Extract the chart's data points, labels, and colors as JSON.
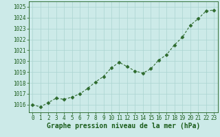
{
  "x": [
    0,
    1,
    2,
    3,
    4,
    5,
    6,
    7,
    8,
    9,
    10,
    11,
    12,
    13,
    14,
    15,
    16,
    17,
    18,
    19,
    20,
    21,
    22,
    23
  ],
  "y": [
    1016.0,
    1015.8,
    1016.2,
    1016.6,
    1016.5,
    1016.7,
    1017.0,
    1017.5,
    1018.1,
    1018.6,
    1019.4,
    1019.9,
    1019.5,
    1019.1,
    1018.9,
    1019.3,
    1020.1,
    1020.6,
    1021.5,
    1022.2,
    1023.3,
    1023.9,
    1024.6,
    1024.7
  ],
  "line_color": "#2d6a2d",
  "marker": "D",
  "marker_size": 2.5,
  "line_width": 0.8,
  "background_color": "#cceae8",
  "grid_color": "#aad4d0",
  "xlabel": "Graphe pression niveau de la mer (hPa)",
  "xlabel_fontsize": 7,
  "xlabel_color": "#1a5c1a",
  "ytick_labels": [
    1016,
    1017,
    1018,
    1019,
    1020,
    1021,
    1022,
    1023,
    1024,
    1025
  ],
  "xtick_labels": [
    "0",
    "1",
    "2",
    "3",
    "4",
    "5",
    "6",
    "7",
    "8",
    "9",
    "10",
    "11",
    "12",
    "13",
    "14",
    "15",
    "16",
    "17",
    "18",
    "19",
    "20",
    "21",
    "22",
    "23"
  ],
  "ylim": [
    1015.3,
    1025.5
  ],
  "xlim": [
    -0.5,
    23.5
  ],
  "tick_fontsize": 5.5,
  "tick_color": "#1a5c1a",
  "spine_color": "#1a5c1a"
}
